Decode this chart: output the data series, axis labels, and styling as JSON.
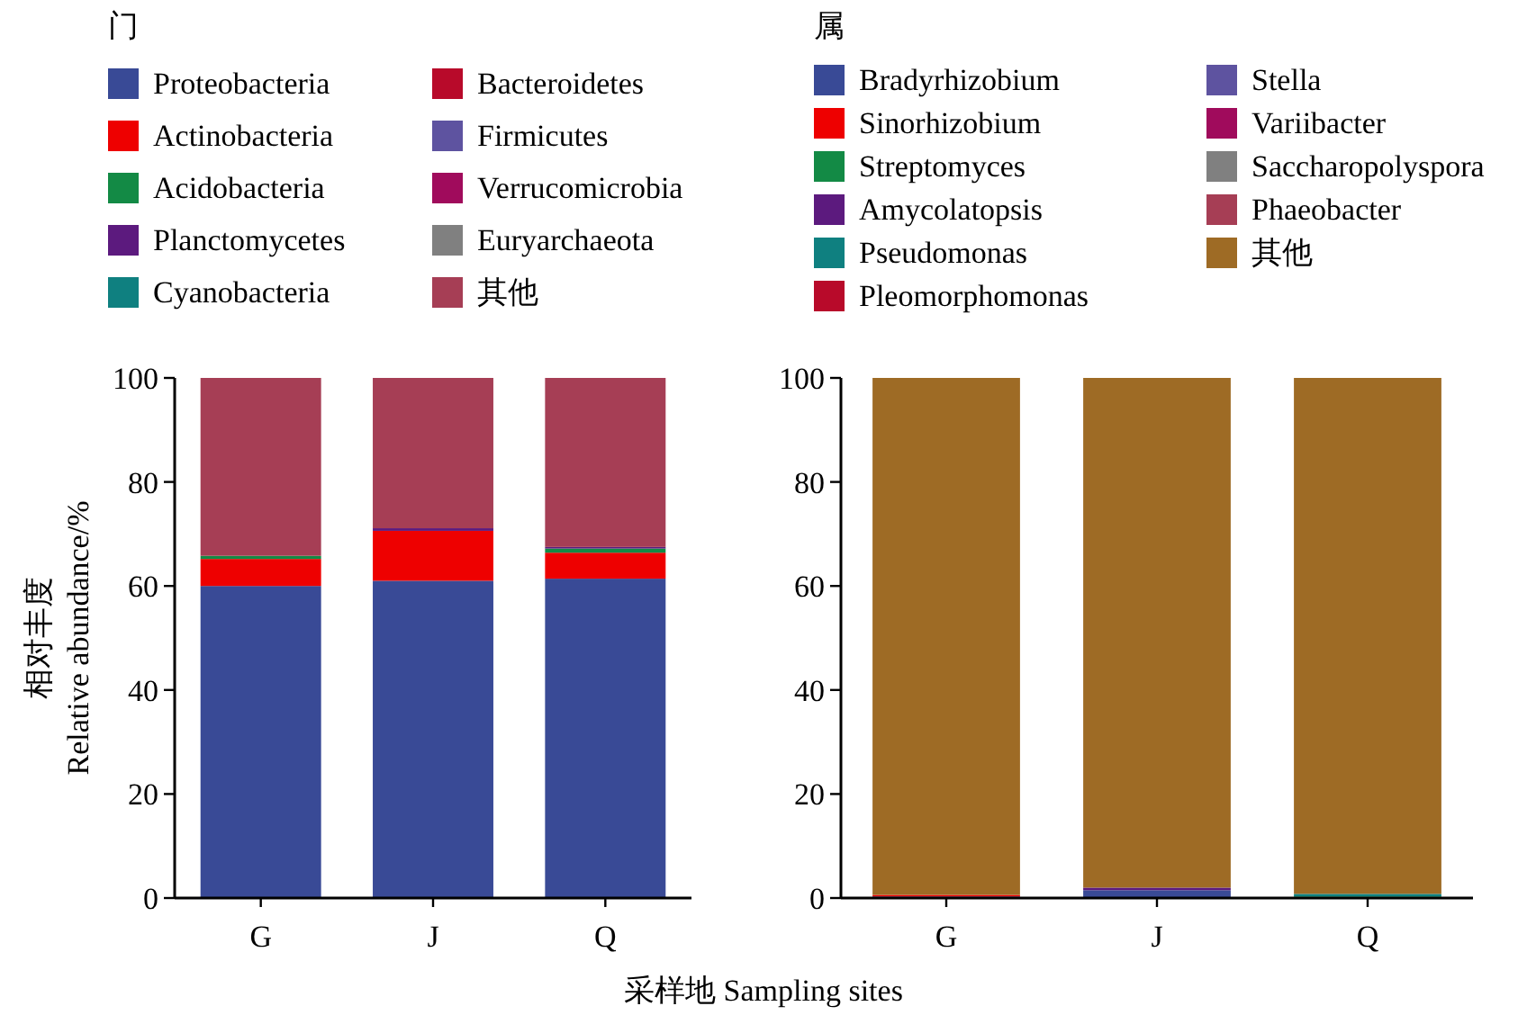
{
  "chart_data": [
    {
      "type": "bar",
      "stacked": true,
      "legend_title": "门",
      "legend": "top",
      "ylabel": "相对丰度\nRelative abundance/%",
      "xlabel": "采样地 Sampling sites",
      "categories": [
        "G",
        "J",
        "Q"
      ],
      "ylim": [
        0,
        100
      ],
      "yticks": [
        0,
        20,
        40,
        60,
        80,
        100
      ],
      "grid": false,
      "series": [
        {
          "name": "Proteobacteria",
          "color": "#394a96",
          "values": [
            60,
            61,
            61.4
          ]
        },
        {
          "name": "Actinobacteria",
          "color": "#ee0000",
          "values": [
            5.2,
            9.6,
            5
          ]
        },
        {
          "name": "Acidobacteria",
          "color": "#138a45",
          "values": [
            0.6,
            0,
            0.8
          ]
        },
        {
          "name": "Planctomycetes",
          "color": "#5c1a7e",
          "values": [
            0,
            0.5,
            0.3
          ]
        },
        {
          "name": "Cyanobacteria",
          "color": "#0f8080",
          "values": [
            0,
            0,
            0
          ]
        },
        {
          "name": "Bacteroidetes",
          "color": "#b80a2a",
          "values": [
            0,
            0,
            0
          ]
        },
        {
          "name": "Firmicutes",
          "color": "#5e53a0",
          "values": [
            0,
            0,
            0
          ]
        },
        {
          "name": "Verrucomicrobia",
          "color": "#a00b5c",
          "values": [
            0,
            0,
            0
          ]
        },
        {
          "name": "Euryarchaeota",
          "color": "#808080",
          "values": [
            0,
            0,
            0
          ]
        },
        {
          "name": "其他",
          "color": "#a63e55",
          "values": [
            34.2,
            28.9,
            32.5
          ]
        }
      ]
    },
    {
      "type": "bar",
      "stacked": true,
      "legend_title": "属",
      "legend": "top",
      "categories": [
        "G",
        "J",
        "Q"
      ],
      "ylim": [
        0,
        100
      ],
      "yticks": [
        0,
        20,
        40,
        60,
        80,
        100
      ],
      "grid": false,
      "series": [
        {
          "name": "Bradyrhizobium",
          "color": "#394a96",
          "values": [
            0.3,
            1.5,
            0
          ]
        },
        {
          "name": "Sinorhizobium",
          "color": "#ee0000",
          "values": [
            0.3,
            0,
            0
          ]
        },
        {
          "name": "Streptomyces",
          "color": "#138a45",
          "values": [
            0,
            0,
            0.3
          ]
        },
        {
          "name": "Amycolatopsis",
          "color": "#5c1a7e",
          "values": [
            0,
            0.5,
            0
          ]
        },
        {
          "name": "Pseudomonas",
          "color": "#0f8080",
          "values": [
            0,
            0,
            0.5
          ]
        },
        {
          "name": "Pleomorphomonas",
          "color": "#b80a2a",
          "values": [
            0,
            0,
            0
          ]
        },
        {
          "name": "Stella",
          "color": "#5e53a0",
          "values": [
            0,
            0,
            0
          ]
        },
        {
          "name": "Variibacter",
          "color": "#a00b5c",
          "values": [
            0,
            0,
            0
          ]
        },
        {
          "name": "Saccharopolyspora",
          "color": "#808080",
          "values": [
            0,
            0,
            0
          ]
        },
        {
          "name": "Phaeobacter",
          "color": "#a63e55",
          "values": [
            0,
            0,
            0
          ]
        },
        {
          "name": "其他",
          "color": "#9e6b25",
          "values": [
            99.4,
            98,
            99.2
          ]
        }
      ]
    }
  ]
}
